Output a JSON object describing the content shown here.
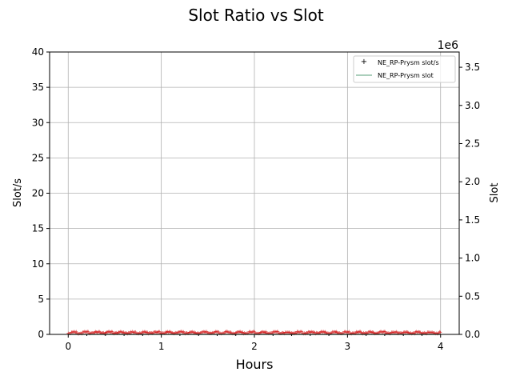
{
  "chart_data": {
    "type": "line",
    "title": "Slot Ratio vs Slot",
    "xlabel": "Hours",
    "ylabel_left": "Slot/s",
    "ylabel_right": "Slot",
    "right_axis_multiplier": "1e6",
    "xlim": [
      -0.2,
      4.2
    ],
    "ylim_left": [
      0,
      40
    ],
    "ylim_right": [
      0,
      3700000
    ],
    "x_ticks": [
      0,
      1,
      2,
      3,
      4
    ],
    "y_ticks_left": [
      0,
      5,
      10,
      15,
      20,
      25,
      30,
      35,
      40
    ],
    "y_ticks_right": [
      0.0,
      0.5,
      1.0,
      1.5,
      2.0,
      2.5,
      3.0,
      3.5
    ],
    "grid": true,
    "legend_position": "top-right",
    "series": [
      {
        "name": "NE_RP-Prysm slot/s",
        "axis": "left",
        "marker": "+",
        "color": "#d62728",
        "x_range": [
          0,
          4
        ],
        "approx_value": 0.25,
        "noise": 0.05
      },
      {
        "name": "NE_RP-Prysm slot",
        "axis": "right",
        "marker": "line",
        "color": "#8fbfa6",
        "x_range": [
          0,
          4
        ],
        "approx_value": 0
      }
    ]
  }
}
